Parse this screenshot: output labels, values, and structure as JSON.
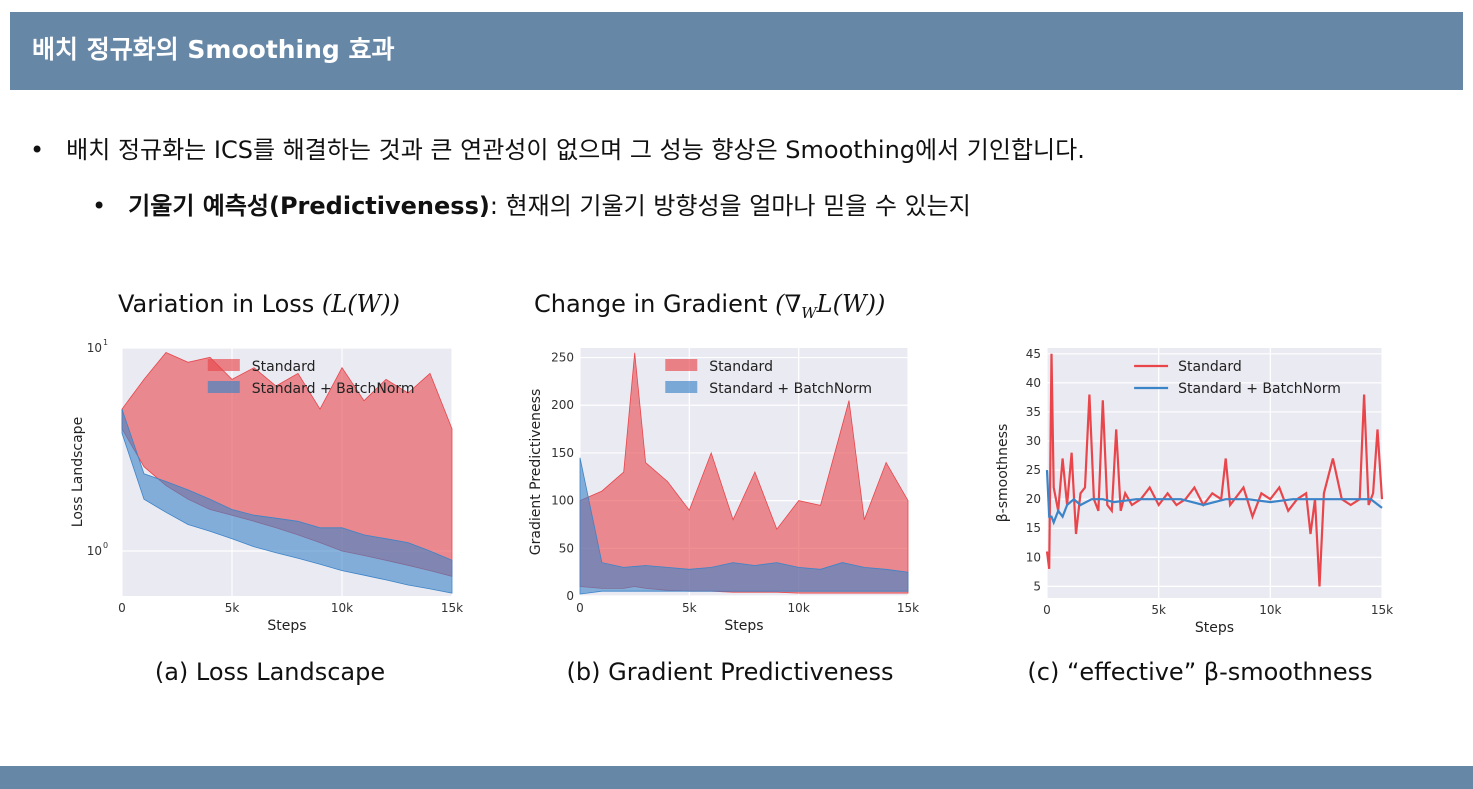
{
  "header": {
    "title": "배치 정규화의 Smoothing 효과"
  },
  "bullets": {
    "main": "배치 정규화는 ICS를 해결하는 것과 큰 연관성이 없으며 그 성능 향상은 Smoothing에서 기인합니다.",
    "sub_bold": "기울기 예측성(Predictiveness)",
    "sub_rest": ": 현재의 기울기 방향성을 얼마나 믿을 수 있는지",
    "marker": "•"
  },
  "headings": {
    "loss_prefix": "Variation in Loss ",
    "loss_math": "(L(W))",
    "grad_prefix": "Change in Gradient ",
    "grad_math": "(∇",
    "grad_sub": "W",
    "grad_math_end": "L(W))"
  },
  "captions": {
    "a": "(a) Loss Landscape",
    "b": "(b) Gradient Predictiveness",
    "c": "(c) “effective” β-smoothness"
  },
  "colors": {
    "header_bg": "#6787a6",
    "plot_bg": "#eaeaf2",
    "standard": "#e8464b",
    "batchnorm": "#3c84c8"
  },
  "chart_data": [
    {
      "type": "area",
      "xlabel": "Steps",
      "ylabel": "Loss Landscape",
      "yscale": "log",
      "ylim": [
        0.6,
        10
      ],
      "xlim": [
        0,
        15000
      ],
      "xticks": [
        "0",
        "5k",
        "10k",
        "15k"
      ],
      "yticks": [
        {
          "label": "10",
          "sup": "1"
        },
        {
          "label": "10",
          "sup": "0"
        }
      ],
      "legend": [
        "Standard",
        "Standard + BatchNorm"
      ],
      "legend_position": "top-right",
      "grid": true,
      "series": [
        {
          "name": "Standard",
          "x": [
            0,
            1000,
            2000,
            3000,
            4000,
            5000,
            6000,
            7000,
            8000,
            9000,
            10000,
            11000,
            12000,
            13000,
            14000,
            15000
          ],
          "low": [
            4.0,
            2.6,
            2.1,
            1.8,
            1.6,
            1.5,
            1.4,
            1.3,
            1.2,
            1.1,
            1.0,
            0.95,
            0.9,
            0.85,
            0.8,
            0.75
          ],
          "high": [
            5.0,
            7.0,
            9.5,
            8.5,
            9.0,
            7.0,
            8.0,
            6.5,
            7.5,
            5.0,
            8.0,
            5.5,
            7.0,
            6.0,
            7.5,
            4.0
          ]
        },
        {
          "name": "Standard + BatchNorm",
          "x": [
            0,
            1000,
            2000,
            3000,
            4000,
            5000,
            6000,
            7000,
            8000,
            9000,
            10000,
            11000,
            12000,
            13000,
            14000,
            15000
          ],
          "low": [
            3.8,
            1.8,
            1.55,
            1.35,
            1.25,
            1.15,
            1.05,
            0.98,
            0.92,
            0.86,
            0.8,
            0.76,
            0.72,
            0.68,
            0.65,
            0.62
          ],
          "high": [
            5.0,
            2.4,
            2.2,
            2.0,
            1.8,
            1.6,
            1.5,
            1.45,
            1.4,
            1.3,
            1.3,
            1.2,
            1.15,
            1.1,
            1.0,
            0.9
          ]
        }
      ]
    },
    {
      "type": "area",
      "xlabel": "Steps",
      "ylabel": "Gradient Predictiveness",
      "ylim": [
        0,
        260
      ],
      "xlim": [
        0,
        15000
      ],
      "xticks": [
        "0",
        "5k",
        "10k",
        "15k"
      ],
      "yticks": [
        "0",
        "50",
        "100",
        "150",
        "200",
        "250"
      ],
      "legend": [
        "Standard",
        "Standard + BatchNorm"
      ],
      "legend_position": "top-right",
      "grid": true,
      "series": [
        {
          "name": "Standard",
          "x": [
            0,
            1000,
            2000,
            2500,
            3000,
            4000,
            5000,
            6000,
            7000,
            8000,
            9000,
            10000,
            11000,
            12300,
            13000,
            14000,
            15000
          ],
          "low": [
            10,
            8,
            8,
            10,
            8,
            6,
            5,
            5,
            4,
            4,
            4,
            3,
            3,
            3,
            3,
            3,
            3
          ],
          "high": [
            100,
            110,
            130,
            255,
            140,
            120,
            90,
            150,
            80,
            130,
            70,
            100,
            95,
            205,
            80,
            140,
            100
          ]
        },
        {
          "name": "Standard + BatchNorm",
          "x": [
            0,
            1000,
            2000,
            3000,
            4000,
            5000,
            6000,
            7000,
            8000,
            9000,
            10000,
            11000,
            12000,
            13000,
            14000,
            15000
          ],
          "low": [
            2,
            5,
            5,
            5,
            5,
            5,
            5,
            5,
            5,
            5,
            5,
            5,
            5,
            5,
            5,
            5
          ],
          "high": [
            145,
            35,
            30,
            32,
            30,
            28,
            30,
            35,
            32,
            35,
            30,
            28,
            35,
            30,
            28,
            25
          ]
        }
      ]
    },
    {
      "type": "line",
      "xlabel": "Steps",
      "ylabel": "β-smoothness",
      "ylim": [
        3,
        46
      ],
      "xlim": [
        0,
        15000
      ],
      "xticks": [
        "0",
        "5k",
        "10k",
        "15k"
      ],
      "yticks": [
        "5",
        "10",
        "15",
        "20",
        "25",
        "30",
        "35",
        "40",
        "45"
      ],
      "legend": [
        "Standard",
        "Standard + BatchNorm"
      ],
      "legend_position": "top-right",
      "grid": true,
      "series": [
        {
          "name": "Standard",
          "x": [
            0,
            100,
            200,
            300,
            500,
            700,
            900,
            1100,
            1300,
            1500,
            1700,
            1900,
            2100,
            2300,
            2500,
            2700,
            2900,
            3100,
            3300,
            3500,
            3800,
            4200,
            4600,
            5000,
            5400,
            5800,
            6200,
            6600,
            7000,
            7400,
            7800,
            8000,
            8200,
            8400,
            8800,
            9200,
            9600,
            10000,
            10400,
            10800,
            11200,
            11600,
            11800,
            12000,
            12200,
            12400,
            12800,
            13200,
            13600,
            14000,
            14200,
            14400,
            14600,
            14800,
            15000
          ],
          "y": [
            11,
            8,
            45,
            22,
            18,
            27,
            19,
            28,
            14,
            21,
            22,
            38,
            20,
            18,
            37,
            19,
            18,
            32,
            18,
            21,
            19,
            20,
            22,
            19,
            21,
            19,
            20,
            22,
            19,
            21,
            20,
            27,
            19,
            20,
            22,
            17,
            21,
            20,
            22,
            18,
            20,
            21,
            14,
            20,
            5,
            21,
            27,
            20,
            19,
            20,
            38,
            19,
            21,
            32,
            20
          ]
        },
        {
          "name": "Standard + BatchNorm",
          "x": [
            0,
            100,
            200,
            300,
            500,
            700,
            900,
            1200,
            1500,
            2000,
            2500,
            3000,
            4000,
            5000,
            6000,
            7000,
            8000,
            9000,
            10000,
            11000,
            12000,
            13000,
            14000,
            14500,
            15000
          ],
          "y": [
            25,
            17,
            17,
            16,
            18,
            17,
            19,
            20,
            19,
            20,
            20,
            19.5,
            20,
            20,
            20,
            19,
            20,
            20,
            19.5,
            20,
            20,
            20,
            20,
            20,
            18.5
          ]
        }
      ]
    }
  ]
}
